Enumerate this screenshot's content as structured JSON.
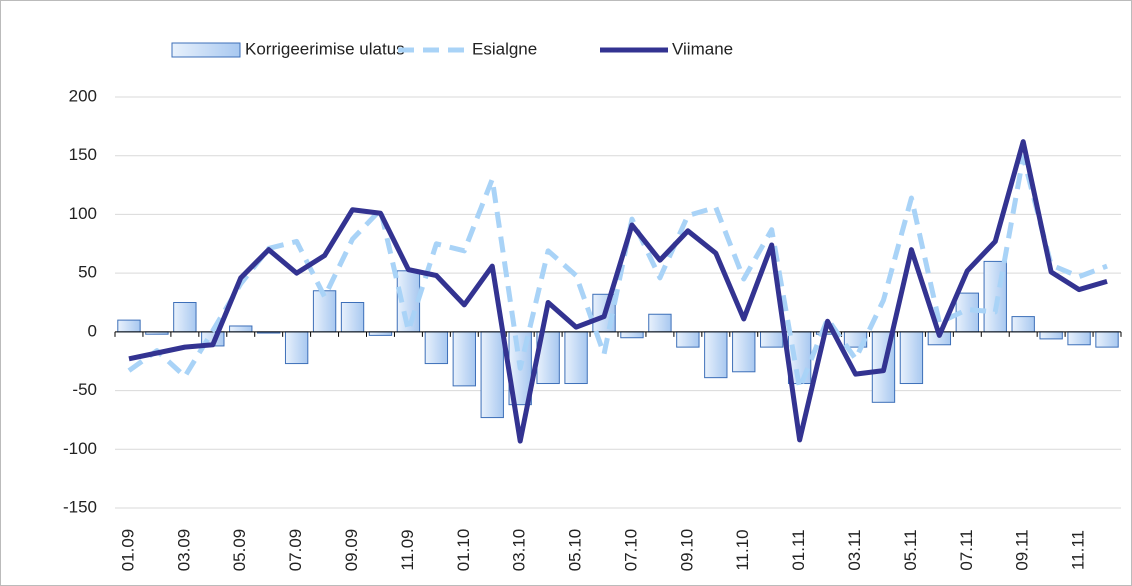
{
  "chart_data": {
    "type": "bar_line",
    "categories": [
      "01.09",
      null,
      "03.09",
      null,
      "05.09",
      null,
      "07.09",
      null,
      "09.09",
      null,
      "11.09",
      null,
      "01.10",
      null,
      "03.10",
      null,
      "05.10",
      null,
      "07.10",
      null,
      "09.10",
      null,
      "11.10",
      null,
      "01.11",
      null,
      "03.11",
      null,
      "05.11",
      null,
      "07.11",
      null,
      "09.11",
      null,
      "11.11",
      null
    ],
    "series": [
      {
        "name": "Korrigeerimise ulatus",
        "kind": "bar",
        "color": "#c5dcf7",
        "values": [
          10,
          -2,
          25,
          -12,
          5,
          -1,
          -27,
          35,
          25,
          -3,
          52,
          -27,
          -46,
          -73,
          -62,
          -44,
          -44,
          32,
          -5,
          15,
          -13,
          -39,
          -34,
          -13,
          -44,
          -2,
          -13,
          -60,
          -44,
          -11,
          33,
          60,
          13,
          -6,
          -11,
          -13
        ]
      },
      {
        "name": "Esialgne",
        "kind": "dashed",
        "color": "#a9d3f7",
        "values": [
          -33,
          -16,
          -38,
          1,
          41,
          71,
          77,
          30,
          79,
          104,
          1,
          75,
          69,
          130,
          -31,
          69,
          48,
          -19,
          96,
          46,
          99,
          106,
          45,
          87,
          -48,
          11,
          -23,
          27,
          114,
          8,
          19,
          17,
          149,
          57,
          47,
          56
        ]
      },
      {
        "name": "Viimane",
        "kind": "line",
        "color": "#333391",
        "values": [
          -23,
          -18,
          -13,
          -11,
          46,
          70,
          50,
          65,
          104,
          101,
          53,
          48,
          23,
          56,
          -93,
          25,
          4,
          13,
          91,
          61,
          86,
          67,
          11,
          74,
          -92,
          9,
          -36,
          -33,
          70,
          -3,
          52,
          77,
          162,
          51,
          36,
          43
        ]
      }
    ],
    "ylim": [
      -150,
      200
    ],
    "yticks": [
      -150,
      -100,
      -50,
      0,
      50,
      100,
      150,
      200
    ],
    "grid": true
  }
}
